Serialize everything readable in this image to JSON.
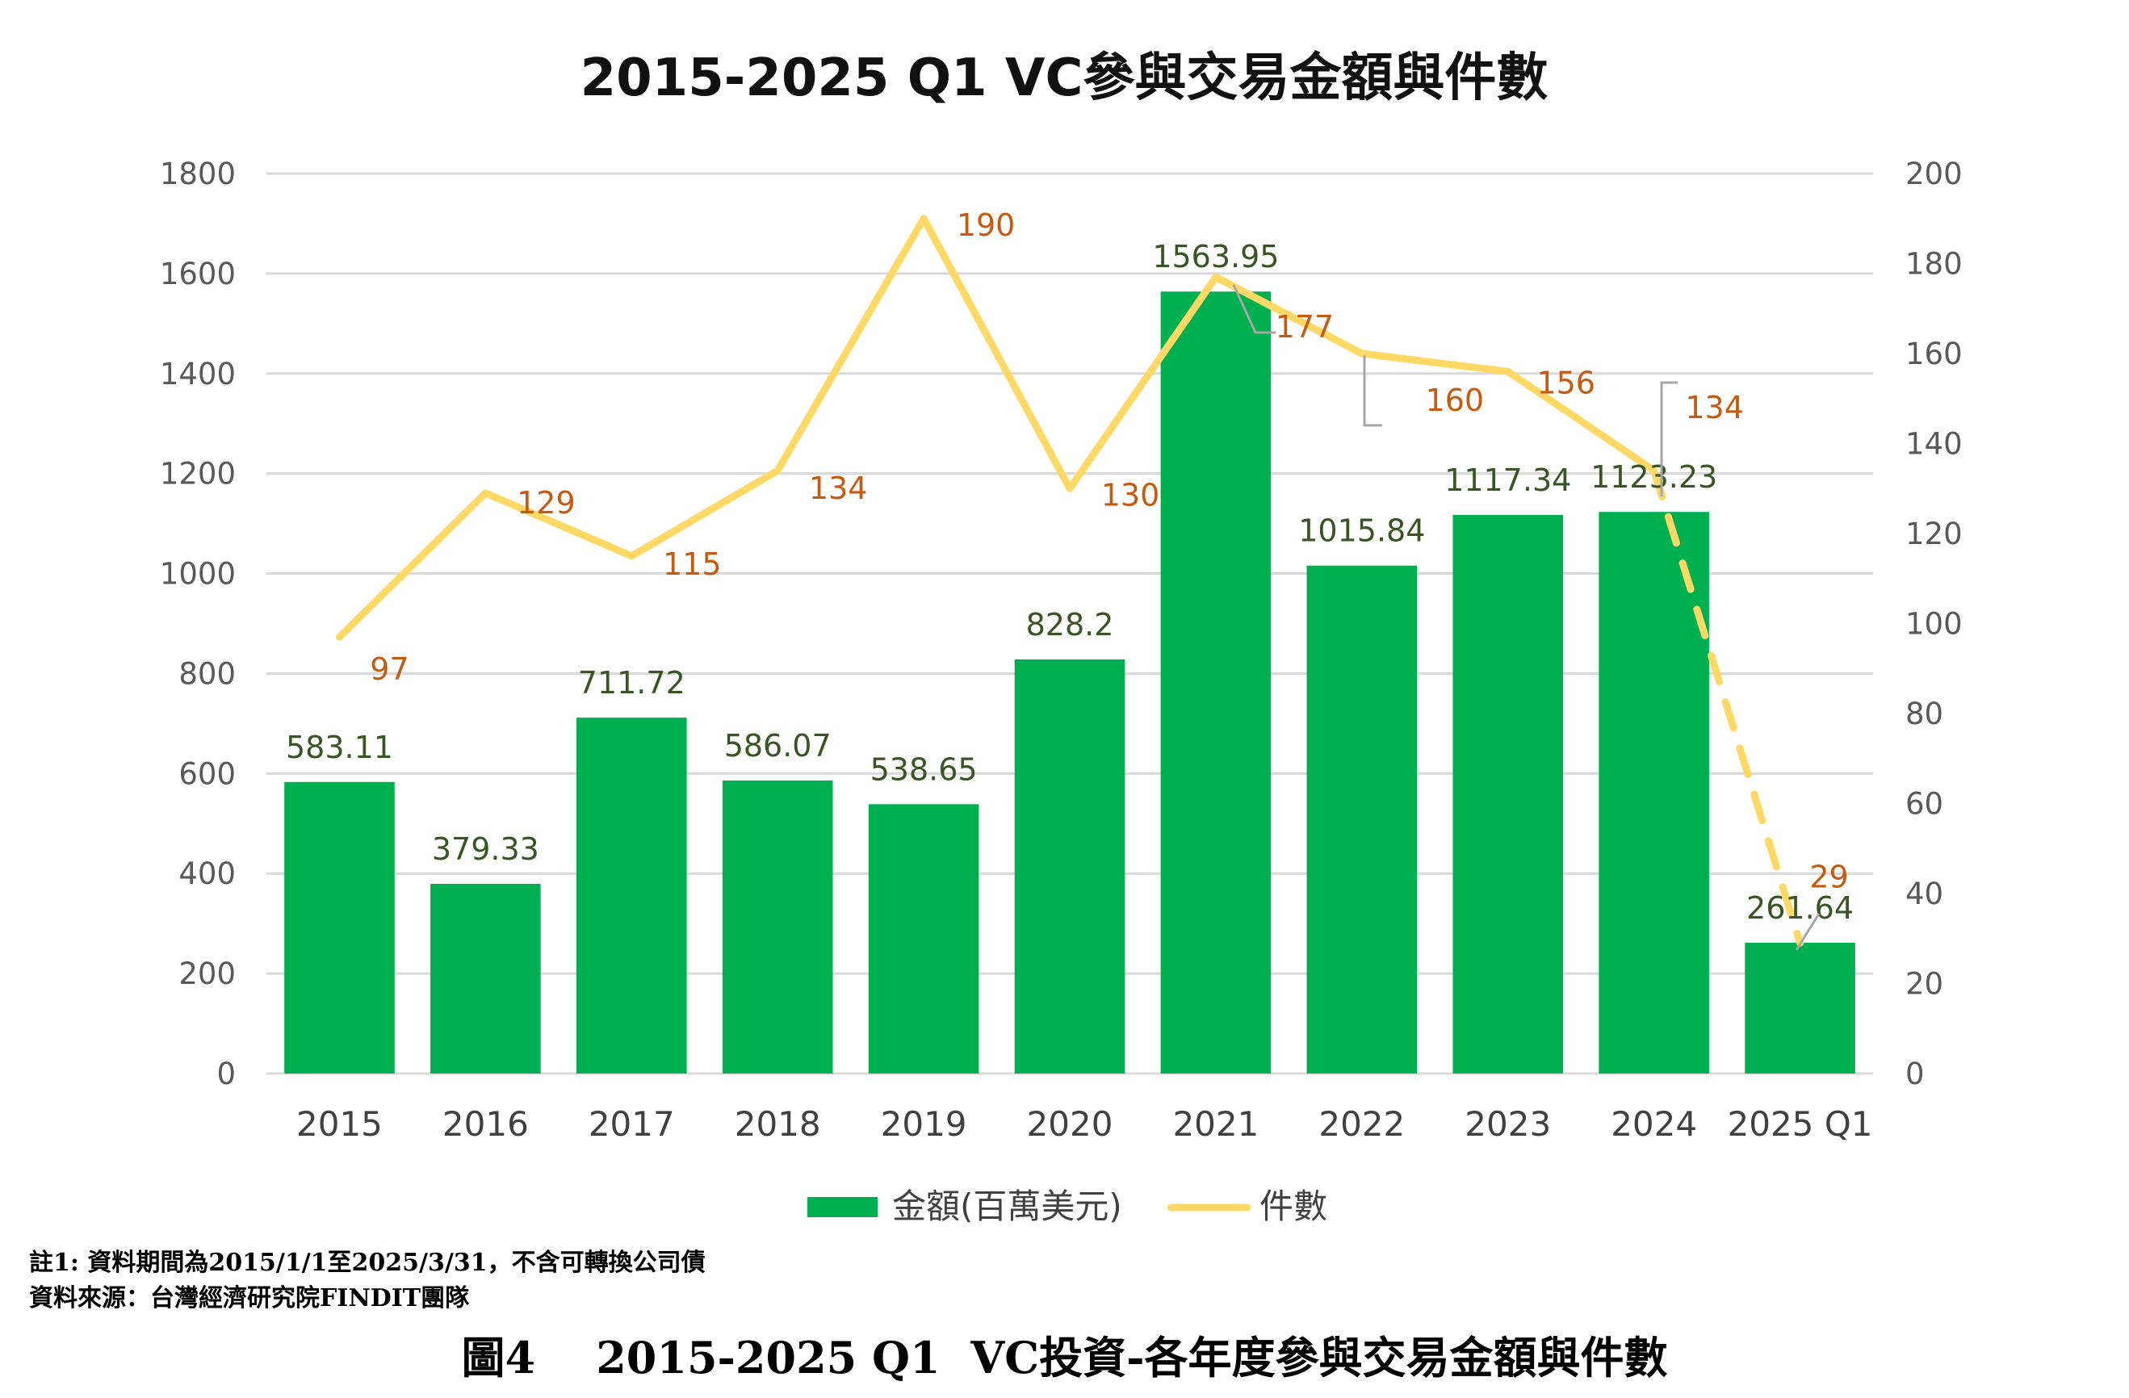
{
  "chart_data": {
    "type": "bar+line",
    "title": "2015-2025 Q1 VC參與交易金額與件數",
    "categories": [
      "2015",
      "2016",
      "2017",
      "2018",
      "2019",
      "2020",
      "2021",
      "2022",
      "2023",
      "2024",
      "2025 Q1"
    ],
    "series": [
      {
        "name": "金額(百萬美元)",
        "type": "bar",
        "axis": "left",
        "color": "#00B050",
        "values": [
          583.11,
          379.33,
          711.72,
          586.07,
          538.65,
          828.2,
          1563.95,
          1015.84,
          1117.34,
          1123.23,
          261.64
        ],
        "labels": [
          "583.11",
          "379.33",
          "711.72",
          "586.07",
          "538.65",
          "828.2",
          "1563.95",
          "1015.84",
          "1117.34",
          "1123.23",
          "261.64"
        ],
        "label_color": "#375623"
      },
      {
        "name": "件數",
        "type": "line",
        "axis": "right",
        "color": "#FFD966",
        "values": [
          97,
          129,
          115,
          134,
          190,
          130,
          177,
          160,
          156,
          134,
          29
        ],
        "labels": [
          "97",
          "129",
          "115",
          "134",
          "190",
          "130",
          "177",
          "160",
          "156",
          "134",
          "29"
        ],
        "label_color": "#C55A11",
        "dashed_last_segment": true
      }
    ],
    "y_left": {
      "min": 0,
      "max": 1800,
      "ticks": [
        "0",
        "200",
        "400",
        "600",
        "800",
        "1000",
        "1200",
        "1400",
        "1600",
        "1800"
      ]
    },
    "y_right": {
      "min": 0,
      "max": 200,
      "ticks": [
        "0",
        "20",
        "40",
        "60",
        "80",
        "100",
        "120",
        "140",
        "160",
        "180",
        "200"
      ]
    },
    "grid": true,
    "legend_position": "bottom"
  },
  "notes": {
    "note1": "註1: 資料期間為2015/1/1至2025/3/31，不含可轉換公司債",
    "source": "資料來源：台灣經濟研究院FINDIT團隊"
  },
  "caption": "圖4    2015-2025 Q1  VC投資-各年度參與交易金額與件數"
}
